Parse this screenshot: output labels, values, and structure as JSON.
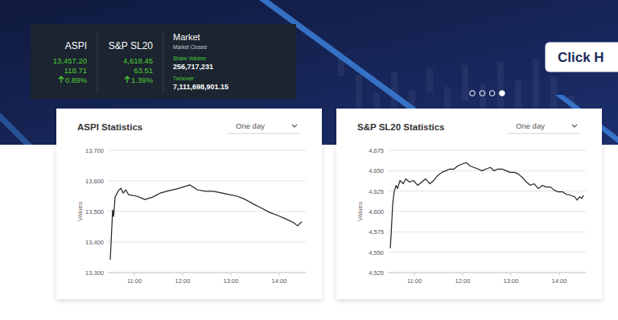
{
  "ticker": {
    "indices": [
      {
        "name": "ASPI",
        "value": "13,457.20",
        "change": "118.71",
        "change_pct": "0.89%"
      },
      {
        "name": "S&P SL20",
        "value": "4,618.45",
        "change": "63.51",
        "change_pct": "1.39%"
      }
    ],
    "market": {
      "title": "Market",
      "status": "Market Closed",
      "share_volume_label": "Share Volume",
      "share_volume": "256,717,231",
      "turnover_label": "Turnover",
      "turnover": "7,111,698,901.15"
    }
  },
  "button": "Click H",
  "carousel": {
    "count": 4,
    "active": 3
  },
  "period_selectors": [
    "One day",
    "One day"
  ],
  "chart_data": [
    {
      "type": "line",
      "title": "ASPI Statistics",
      "y_label": "Values",
      "color": "#222222",
      "grid": true,
      "x": [
        10.5,
        10.55,
        10.57,
        10.6,
        10.67,
        10.72,
        10.77,
        10.82,
        10.88,
        11.05,
        11.22,
        11.38,
        11.55,
        11.72,
        11.88,
        12.05,
        12.15,
        12.3,
        12.47,
        12.63,
        12.8,
        12.97,
        13.13,
        13.3,
        13.47,
        13.63,
        13.8,
        13.97,
        14.13,
        14.3,
        14.38,
        14.43,
        14.47
      ],
      "values": [
        13342,
        13505,
        13484,
        13547,
        13568,
        13576,
        13560,
        13571,
        13555,
        13550,
        13539,
        13547,
        13561,
        13568,
        13574,
        13582,
        13587,
        13571,
        13566,
        13566,
        13561,
        13555,
        13550,
        13539,
        13524,
        13511,
        13497,
        13487,
        13476,
        13463,
        13453,
        13461,
        13466
      ],
      "xlim": [
        10.45,
        14.55
      ],
      "xticks": [
        {
          "value": 11,
          "label": "11:00"
        },
        {
          "value": 12,
          "label": "12:00"
        },
        {
          "value": 13,
          "label": "13:00"
        },
        {
          "value": 14,
          "label": "14:00"
        }
      ],
      "ylim": [
        13300,
        13700
      ],
      "yticks": [
        {
          "value": 13300,
          "label": "13,300"
        },
        {
          "value": 13400,
          "label": "13,400"
        },
        {
          "value": 13500,
          "label": "13,500"
        },
        {
          "value": 13600,
          "label": "13,600"
        },
        {
          "value": 13700,
          "label": "13,700"
        }
      ]
    },
    {
      "type": "line",
      "title": "S&P SL20 Statistics",
      "y_label": "Values",
      "color": "#222222",
      "grid": true,
      "x": [
        10.5,
        10.52,
        10.55,
        10.58,
        10.62,
        10.65,
        10.7,
        10.77,
        10.82,
        10.9,
        10.98,
        11.07,
        11.15,
        11.23,
        11.32,
        11.4,
        11.48,
        11.57,
        11.65,
        11.73,
        11.82,
        11.9,
        11.98,
        12.07,
        12.15,
        12.23,
        12.32,
        12.4,
        12.48,
        12.57,
        12.65,
        12.73,
        12.82,
        12.9,
        12.98,
        13.07,
        13.15,
        13.23,
        13.32,
        13.4,
        13.48,
        13.57,
        13.65,
        13.73,
        13.82,
        13.9,
        13.98,
        14.07,
        14.15,
        14.23,
        14.32,
        14.37,
        14.42,
        14.47,
        14.5
      ],
      "values": [
        4555,
        4574,
        4609,
        4624,
        4632,
        4628,
        4638,
        4634,
        4640,
        4636,
        4638,
        4632,
        4636,
        4640,
        4634,
        4638,
        4644,
        4648,
        4650,
        4652,
        4652,
        4656,
        4658,
        4660,
        4656,
        4654,
        4652,
        4650,
        4652,
        4654,
        4650,
        4652,
        4652,
        4650,
        4648,
        4648,
        4646,
        4642,
        4636,
        4632,
        4634,
        4628,
        4632,
        4630,
        4630,
        4626,
        4624,
        4624,
        4621,
        4620,
        4618,
        4614,
        4618,
        4616,
        4620
      ],
      "xlim": [
        10.45,
        14.55
      ],
      "xticks": [
        {
          "value": 11,
          "label": "11:00"
        },
        {
          "value": 12,
          "label": "12:00"
        },
        {
          "value": 13,
          "label": "13:00"
        },
        {
          "value": 14,
          "label": "14:00"
        }
      ],
      "ylim": [
        4525,
        4675
      ],
      "yticks": [
        {
          "value": 4525,
          "label": "4,525"
        },
        {
          "value": 4550,
          "label": "4,550"
        },
        {
          "value": 4575,
          "label": "4,575"
        },
        {
          "value": 4600,
          "label": "4,600"
        },
        {
          "value": 4625,
          "label": "4,625"
        },
        {
          "value": 4650,
          "label": "4,650"
        },
        {
          "value": 4675,
          "label": "4,675"
        }
      ]
    }
  ]
}
